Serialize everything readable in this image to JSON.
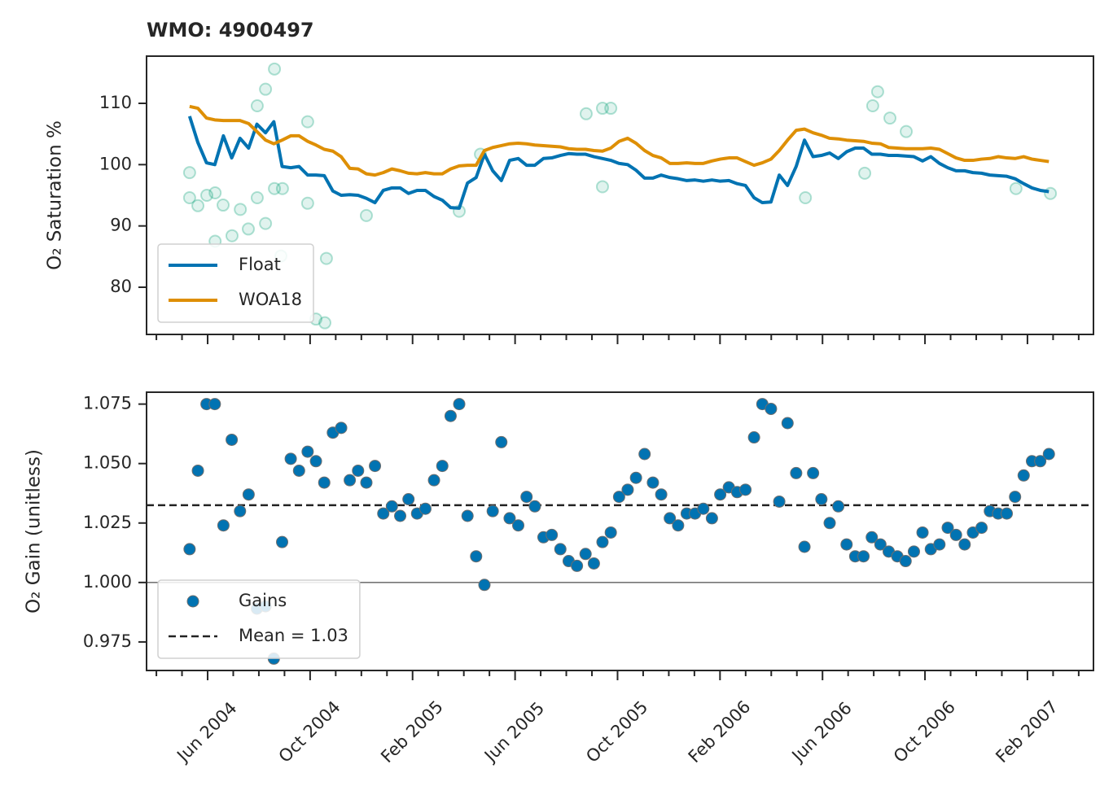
{
  "chart_data": [
    {
      "type": "line",
      "title": "WMO: 4900497",
      "ylabel": "O₂ Saturation %",
      "x": [
        2004.358,
        2004.385,
        2004.413,
        2004.44,
        2004.468,
        2004.495,
        2004.522,
        2004.55,
        2004.577,
        2004.605,
        2004.632,
        2004.659,
        2004.687,
        2004.714,
        2004.742,
        2004.769,
        2004.796,
        2004.824,
        2004.851,
        2004.879,
        2004.906,
        2004.933,
        2004.961,
        2004.988,
        2005.016,
        2005.043,
        2005.07,
        2005.098,
        2005.125,
        2005.153,
        2005.18,
        2005.207,
        2005.235,
        2005.262,
        2005.29,
        2005.317,
        2005.344,
        2005.372,
        2005.399,
        2005.427,
        2005.454,
        2005.481,
        2005.509,
        2005.536,
        2005.564,
        2005.591,
        2005.618,
        2005.646,
        2005.673,
        2005.701,
        2005.728,
        2005.755,
        2005.783,
        2005.81,
        2005.838,
        2005.865,
        2005.892,
        2005.92,
        2005.947,
        2005.975,
        2006.002,
        2006.029,
        2006.057,
        2006.084,
        2006.112,
        2006.139,
        2006.166,
        2006.194,
        2006.221,
        2006.249,
        2006.276,
        2006.303,
        2006.331,
        2006.358,
        2006.386,
        2006.413,
        2006.44,
        2006.468,
        2006.495,
        2006.523,
        2006.55,
        2006.577,
        2006.605,
        2006.632,
        2006.66,
        2006.687,
        2006.714,
        2006.742,
        2006.769,
        2006.797,
        2006.824,
        2006.851,
        2006.879,
        2006.906,
        2006.934,
        2006.961,
        2006.988,
        2007.016,
        2007.043,
        2007.071,
        2007.098,
        2007.125,
        2007.153
      ],
      "series": [
        {
          "name": "Float",
          "color": "#0173b2",
          "values": [
            107.9,
            103.6,
            100.3,
            100.0,
            104.7,
            101.1,
            104.3,
            102.7,
            106.6,
            105.2,
            107.0,
            99.7,
            99.5,
            99.7,
            98.3,
            98.3,
            98.2,
            95.7,
            95.0,
            95.1,
            95.0,
            94.5,
            93.8,
            95.8,
            96.2,
            96.2,
            95.3,
            95.8,
            95.8,
            94.8,
            94.2,
            93.0,
            92.9,
            97.0,
            97.9,
            101.7,
            99.0,
            97.4,
            100.7,
            101.0,
            99.9,
            99.9,
            101.0,
            101.1,
            101.5,
            101.8,
            101.7,
            101.7,
            101.3,
            101.0,
            100.7,
            100.2,
            100.0,
            99.1,
            97.8,
            97.8,
            98.3,
            97.9,
            97.7,
            97.4,
            97.5,
            97.3,
            97.5,
            97.3,
            97.4,
            96.9,
            96.6,
            94.6,
            93.8,
            93.9,
            98.3,
            96.6,
            99.7,
            104.0,
            101.3,
            101.5,
            101.9,
            101.0,
            102.1,
            102.7,
            102.7,
            101.7,
            101.7,
            101.5,
            101.5,
            101.4,
            101.3,
            100.6,
            101.3,
            100.2,
            99.5,
            99.0,
            99.0,
            98.7,
            98.6,
            98.3,
            98.2,
            98.1,
            97.7,
            96.9,
            96.2,
            95.8,
            95.6
          ]
        },
        {
          "name": "WOA18",
          "color": "#de8f05",
          "values": [
            109.5,
            109.2,
            107.6,
            107.3,
            107.2,
            107.2,
            107.2,
            106.7,
            105.4,
            104.0,
            103.4,
            104.0,
            104.7,
            104.7,
            103.8,
            103.2,
            102.5,
            102.2,
            101.3,
            99.4,
            99.3,
            98.5,
            98.3,
            98.7,
            99.3,
            99.0,
            98.6,
            98.5,
            98.7,
            98.5,
            98.5,
            99.3,
            99.8,
            99.9,
            99.9,
            102.3,
            102.8,
            103.1,
            103.4,
            103.5,
            103.4,
            103.2,
            103.1,
            103.0,
            102.9,
            102.6,
            102.5,
            102.5,
            102.3,
            102.2,
            102.7,
            103.8,
            104.3,
            103.5,
            102.3,
            101.5,
            101.1,
            100.2,
            100.2,
            100.3,
            100.2,
            100.2,
            100.6,
            100.9,
            101.1,
            101.1,
            100.5,
            99.9,
            100.3,
            100.9,
            102.3,
            104.0,
            105.6,
            105.8,
            105.2,
            104.8,
            104.3,
            104.2,
            104.0,
            103.9,
            103.8,
            103.5,
            103.4,
            102.8,
            102.7,
            102.6,
            102.6,
            102.6,
            102.7,
            102.5,
            101.8,
            101.1,
            100.7,
            100.7,
            100.9,
            101.0,
            101.3,
            101.1,
            101.0,
            101.3,
            100.9,
            100.7,
            100.5
          ]
        }
      ],
      "points": {
        "color": "#029e73",
        "x": [
          2004.358,
          2004.358,
          2004.385,
          2004.414,
          2004.441,
          2004.441,
          2004.467,
          2004.496,
          2004.523,
          2004.549,
          2004.578,
          2004.605,
          2004.634,
          2004.578,
          2004.605,
          2004.634,
          2004.66,
          2004.655,
          2004.742,
          2004.742,
          2004.769,
          2004.798,
          2004.803,
          2004.933,
          2005.235,
          2005.304,
          2005.648,
          2005.701,
          2005.701,
          2005.728,
          2006.361,
          2006.554,
          2006.58,
          2006.596,
          2006.636,
          2006.689,
          2007.046,
          2007.158
        ],
        "values": [
          94.6,
          98.7,
          93.3,
          95.0,
          95.4,
          87.5,
          93.4,
          88.4,
          92.7,
          89.5,
          109.6,
          112.3,
          115.6,
          94.6,
          90.4,
          96.1,
          96.1,
          85.1,
          107.0,
          93.7,
          74.8,
          74.2,
          84.7,
          91.7,
          92.4,
          101.7,
          108.3,
          109.2,
          96.4,
          109.2,
          94.6,
          98.6,
          109.6,
          111.9,
          107.6,
          105.4,
          96.1,
          95.3
        ]
      },
      "xlim": [
        2004.218,
        2007.298
      ],
      "xticks": [
        2004.4167,
        2004.75,
        2005.0833,
        2005.4167,
        2005.75,
        2006.0833,
        2006.4167,
        2006.75,
        2007.0833
      ],
      "xticklabels": false,
      "xminorticks": [
        2004.25,
        2004.3333,
        2004.5,
        2004.5833,
        2004.6667,
        2004.8333,
        2004.9167,
        2005.0,
        2005.1667,
        2005.25,
        2005.3333,
        2005.5,
        2005.5833,
        2005.6667,
        2005.8333,
        2005.9167,
        2006.0,
        2006.1667,
        2006.25,
        2006.3333,
        2006.5,
        2006.5833,
        2006.6667,
        2006.8333,
        2006.9167,
        2007.0,
        2007.1667,
        2007.25
      ],
      "ylim": [
        72.3,
        117.7
      ],
      "yticks": [
        80,
        90,
        100,
        110
      ],
      "legend": "lower left"
    },
    {
      "type": "scatter",
      "ylabel": "O₂ Gain (unitless)",
      "x": [
        2004.358,
        2004.385,
        2004.413,
        2004.44,
        2004.468,
        2004.495,
        2004.522,
        2004.55,
        2004.577,
        2004.605,
        2004.632,
        2004.659,
        2004.687,
        2004.714,
        2004.742,
        2004.769,
        2004.796,
        2004.824,
        2004.851,
        2004.879,
        2004.906,
        2004.933,
        2004.961,
        2004.988,
        2005.016,
        2005.043,
        2005.07,
        2005.098,
        2005.125,
        2005.153,
        2005.18,
        2005.207,
        2005.235,
        2005.262,
        2005.29,
        2005.317,
        2005.344,
        2005.372,
        2005.399,
        2005.427,
        2005.454,
        2005.481,
        2005.509,
        2005.536,
        2005.564,
        2005.591,
        2005.618,
        2005.646,
        2005.673,
        2005.701,
        2005.728,
        2005.755,
        2005.783,
        2005.81,
        2005.838,
        2005.865,
        2005.892,
        2005.92,
        2005.947,
        2005.975,
        2006.002,
        2006.029,
        2006.057,
        2006.084,
        2006.112,
        2006.139,
        2006.166,
        2006.194,
        2006.221,
        2006.249,
        2006.276,
        2006.303,
        2006.331,
        2006.358,
        2006.386,
        2006.413,
        2006.44,
        2006.468,
        2006.495,
        2006.523,
        2006.55,
        2006.577,
        2006.605,
        2006.632,
        2006.66,
        2006.687,
        2006.714,
        2006.742,
        2006.769,
        2006.797,
        2006.824,
        2006.851,
        2006.879,
        2006.906,
        2006.934,
        2006.961,
        2006.988,
        2007.016,
        2007.043,
        2007.071,
        2007.098,
        2007.125,
        2007.153
      ],
      "series": [
        {
          "name": "Gains",
          "color": "#0173b2",
          "values": [
            1.014,
            1.047,
            1.075,
            1.075,
            1.024,
            1.06,
            1.03,
            1.037,
            0.989,
            0.99,
            0.968,
            1.017,
            1.052,
            1.047,
            1.055,
            1.051,
            1.042,
            1.063,
            1.065,
            1.043,
            1.047,
            1.042,
            1.049,
            1.029,
            1.032,
            1.028,
            1.035,
            1.029,
            1.031,
            1.043,
            1.049,
            1.07,
            1.075,
            1.028,
            1.011,
            0.999,
            1.03,
            1.059,
            1.027,
            1.024,
            1.036,
            1.032,
            1.019,
            1.02,
            1.014,
            1.009,
            1.007,
            1.012,
            1.008,
            1.017,
            1.021,
            1.036,
            1.039,
            1.044,
            1.054,
            1.042,
            1.037,
            1.027,
            1.024,
            1.029,
            1.029,
            1.031,
            1.027,
            1.037,
            1.04,
            1.038,
            1.039,
            1.061,
            1.075,
            1.073,
            1.034,
            1.067,
            1.046,
            1.015,
            1.046,
            1.035,
            1.025,
            1.032,
            1.016,
            1.011,
            1.011,
            1.019,
            1.016,
            1.013,
            1.011,
            1.009,
            1.013,
            1.021,
            1.014,
            1.016,
            1.023,
            1.02,
            1.016,
            1.021,
            1.023,
            1.03,
            1.029,
            1.029,
            1.036,
            1.045,
            1.051,
            1.051,
            1.054
          ]
        }
      ],
      "hlines": [
        {
          "name": "Mean = 1.03",
          "value": 1.0325,
          "color": "#222222",
          "dash": true
        },
        {
          "value": 1,
          "color": "#222222"
        }
      ],
      "xlim": [
        2004.218,
        2007.298
      ],
      "xticks": [
        {
          "value": 2004.4167,
          "label": "Jun 2004"
        },
        {
          "value": 2004.75,
          "label": "Oct 2004"
        },
        {
          "value": 2005.0833,
          "label": "Feb 2005"
        },
        {
          "value": 2005.4167,
          "label": "Jun 2005"
        },
        {
          "value": 2005.75,
          "label": "Oct 2005"
        },
        {
          "value": 2006.0833,
          "label": "Feb 2006"
        },
        {
          "value": 2006.4167,
          "label": "Jun 2006"
        },
        {
          "value": 2006.75,
          "label": "Oct 2006"
        },
        {
          "value": 2007.0833,
          "label": "Feb 2007"
        }
      ],
      "xminorticks": [
        2004.25,
        2004.3333,
        2004.5,
        2004.5833,
        2004.6667,
        2004.8333,
        2004.9167,
        2005.0,
        2005.1667,
        2005.25,
        2005.3333,
        2005.5,
        2005.5833,
        2005.6667,
        2005.8333,
        2005.9167,
        2006.0,
        2006.1667,
        2006.25,
        2006.3333,
        2006.5,
        2006.5833,
        2006.6667,
        2006.8333,
        2006.9167,
        2007.0,
        2007.1667,
        2007.25
      ],
      "ylim": [
        0.963,
        1.08
      ],
      "yticks": [
        0.975,
        {
          "value": 1,
          "label": "1.000"
        },
        1.025,
        {
          "value": 1.05,
          "label": "1.050"
        },
        1.075
      ],
      "legend": "lower left"
    }
  ]
}
